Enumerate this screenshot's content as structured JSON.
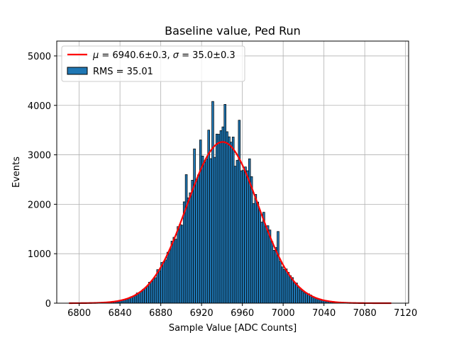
{
  "chart_data": {
    "type": "histogram",
    "title": "Baseline value, Ped Run",
    "xlabel": "Sample Value [ADC Counts]",
    "ylabel": "Events",
    "xlim": [
      6778,
      7123
    ],
    "ylim": [
      0,
      5300
    ],
    "xticks": [
      6800,
      6840,
      6880,
      6920,
      6960,
      7000,
      7040,
      7080,
      7120
    ],
    "yticks": [
      0,
      1000,
      2000,
      3000,
      4000,
      5000
    ],
    "grid": true,
    "legend_position": "upper-left",
    "histogram": {
      "name": "RMS = 35.01",
      "color": "#1f77b4",
      "edge_color": "#000000",
      "bin_width": 2,
      "bin_start": 6790,
      "bin_end": 7104,
      "peak_spikes": [
        {
          "x": 6904,
          "y": 2600
        },
        {
          "x": 6912,
          "y": 3120
        },
        {
          "x": 6918,
          "y": 3300
        },
        {
          "x": 6926,
          "y": 3500
        },
        {
          "x": 6930,
          "y": 4080
        },
        {
          "x": 6934,
          "y": 3420
        },
        {
          "x": 6942,
          "y": 4020
        },
        {
          "x": 6950,
          "y": 3360
        },
        {
          "x": 6956,
          "y": 3700
        },
        {
          "x": 6966,
          "y": 2920
        },
        {
          "x": 6972,
          "y": 2200
        },
        {
          "x": 6986,
          "y": 1480
        },
        {
          "x": 6994,
          "y": 1450
        },
        {
          "x": 6902,
          "y": 2050
        },
        {
          "x": 6896,
          "y": 1550
        }
      ]
    },
    "fit": {
      "name": "μ = 6940.6±0.3, σ = 35.0±0.3",
      "name_mu": "μ",
      "name_mu_value": " = 6940.6±0.3, ",
      "name_sigma": "σ",
      "name_sigma_value": " = 35.0±0.3",
      "color": "#ff0000",
      "mu": 6940.6,
      "sigma": 35.0,
      "amplitude": 3260,
      "x_start": 6790,
      "x_end": 7106
    }
  }
}
